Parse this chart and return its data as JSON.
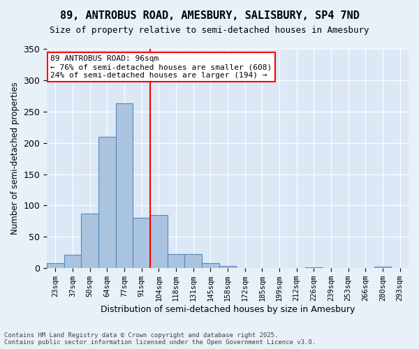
{
  "title1": "89, ANTROBUS ROAD, AMESBURY, SALISBURY, SP4 7ND",
  "title2": "Size of property relative to semi-detached houses in Amesbury",
  "xlabel": "Distribution of semi-detached houses by size in Amesbury",
  "ylabel": "Number of semi-detached properties",
  "bins": [
    "23sqm",
    "37sqm",
    "50sqm",
    "64sqm",
    "77sqm",
    "91sqm",
    "104sqm",
    "118sqm",
    "131sqm",
    "145sqm",
    "158sqm",
    "172sqm",
    "185sqm",
    "199sqm",
    "212sqm",
    "226sqm",
    "239sqm",
    "253sqm",
    "266sqm",
    "280sqm",
    "293sqm"
  ],
  "values": [
    8,
    21,
    87,
    210,
    263,
    80,
    85,
    22,
    22,
    8,
    4,
    0,
    0,
    0,
    0,
    1,
    0,
    0,
    0,
    2,
    0
  ],
  "bar_color": "#aac4e0",
  "bar_edge_color": "#5588bb",
  "vline_x": 5.5,
  "vline_color": "red",
  "annotation_text": "89 ANTROBUS ROAD: 96sqm\n← 76% of semi-detached houses are smaller (608)\n24% of semi-detached houses are larger (194) →",
  "annotation_box_color": "white",
  "annotation_box_edge": "red",
  "footer": "Contains HM Land Registry data © Crown copyright and database right 2025.\nContains public sector information licensed under the Open Government Licence v3.0.",
  "ylim": [
    0,
    350
  ],
  "bg_color": "#e8f0f8",
  "plot_bg_color": "#dce8f5"
}
